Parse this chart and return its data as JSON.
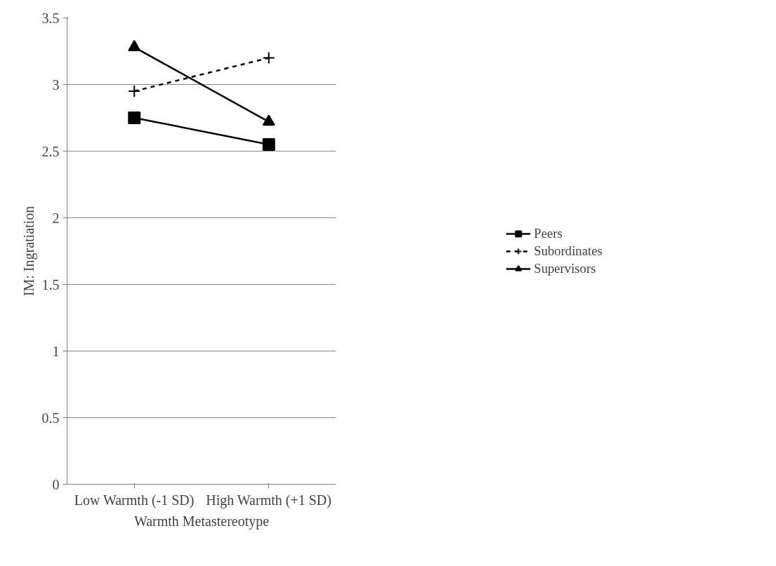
{
  "chart_data": {
    "type": "line",
    "xlabel": "Warmth Metastereotype",
    "ylabel": "IM: Ingratiation",
    "categories": [
      "Low Warmth (-1 SD)",
      "High Warmth (+1 SD)"
    ],
    "series": [
      {
        "name": "Peers",
        "color": "#000000",
        "values": [
          2.75,
          2.55
        ],
        "marker": "square",
        "line_style": "solid"
      },
      {
        "name": "Subordinates",
        "color": "#000000",
        "values": [
          2.95,
          3.2
        ],
        "marker": "cross",
        "line_style": "dashed"
      },
      {
        "name": "Supervisors",
        "color": "#000000",
        "values": [
          3.28,
          2.72
        ],
        "marker": "triangle",
        "line_style": "solid"
      }
    ],
    "ylim": [
      0,
      3.5
    ],
    "yticks": [
      0,
      0.5,
      1,
      1.5,
      2,
      2.5,
      3,
      3.5
    ],
    "grid": "y",
    "legend": "right"
  }
}
